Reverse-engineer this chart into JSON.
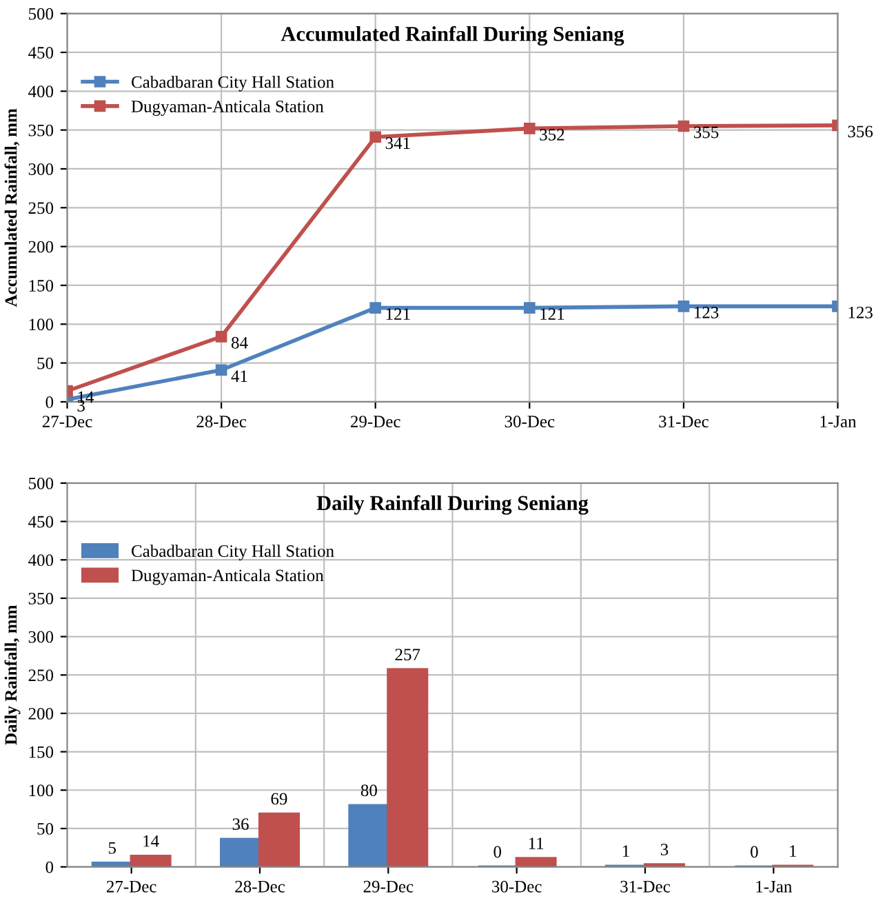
{
  "chart_data": [
    {
      "type": "line",
      "title": "Accumulated Rainfall During Seniang",
      "ylabel": "Accumulated Rainfall, mm",
      "categories": [
        "27-Dec",
        "28-Dec",
        "29-Dec",
        "30-Dec",
        "31-Dec",
        "1-Jan"
      ],
      "series": [
        {
          "name": "Cabadbaran City Hall Station",
          "color": "#4f81bd",
          "values": [
            3,
            41,
            121,
            121,
            123,
            123
          ]
        },
        {
          "name": "Dugyaman-Anticala Station",
          "color": "#c0504d",
          "values": [
            14,
            84,
            341,
            352,
            355,
            356
          ]
        }
      ],
      "ylim": [
        0,
        500
      ],
      "yticks": [
        0,
        50,
        100,
        150,
        200,
        250,
        300,
        350,
        400,
        450,
        500
      ],
      "grid": true,
      "legend": "top left",
      "marker": "square",
      "data_labels": true
    },
    {
      "type": "bar",
      "title": "Daily Rainfall During Seniang",
      "ylabel": "Daily Rainfall, mm",
      "categories": [
        "27-Dec",
        "28-Dec",
        "29-Dec",
        "30-Dec",
        "31-Dec",
        "1-Jan"
      ],
      "series": [
        {
          "name": "Cabadbaran City Hall Station",
          "color": "#4f81bd",
          "values": [
            5,
            36,
            80,
            0,
            1,
            0
          ]
        },
        {
          "name": "Dugyaman-Anticala Station",
          "color": "#c0504d",
          "values": [
            14,
            69,
            257,
            11,
            3,
            1
          ]
        }
      ],
      "ylim": [
        0,
        500
      ],
      "yticks": [
        0,
        50,
        100,
        150,
        200,
        250,
        300,
        350,
        400,
        450,
        500
      ],
      "grid": true,
      "legend": "top left",
      "data_labels": true
    }
  ]
}
